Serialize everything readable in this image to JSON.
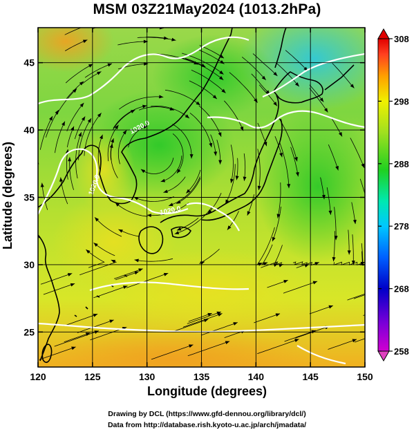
{
  "title": "MSM 03Z21May2024 (1013.2hPa)",
  "xlabel": "Longitude (degrees)",
  "ylabel": "Latitude  (degrees)",
  "credits": [
    "Drawing by DCL (https://www.gfd-dennou.org/library/dcl/)",
    "Data from http://database.rish.kyoto-u.ac.jp/arch/jmadata/"
  ],
  "chart_data": {
    "type": "heatmap",
    "title": "MSM 03Z21May2024 (1013.2hPa)",
    "xlabel": "Longitude (degrees)",
    "ylabel": "Latitude  (degrees)",
    "xlim": [
      120,
      150
    ],
    "ylim": [
      22.4,
      47.6
    ],
    "xticks": [
      120,
      125,
      130,
      135,
      140,
      145,
      150
    ],
    "yticks": [
      25,
      30,
      35,
      40,
      45
    ],
    "xtick_labels": [
      "120",
      "125",
      "130",
      "135",
      "140",
      "145",
      "150"
    ],
    "ytick_labels": [
      "25",
      "30",
      "35",
      "40",
      "45"
    ],
    "colorbar": {
      "min": 258,
      "max": 308,
      "ticks": [
        258,
        268,
        278,
        288,
        298,
        308
      ],
      "tick_labels": [
        "258",
        "268",
        "278",
        "288",
        "298",
        "308"
      ],
      "colormap": [
        "#d000d0",
        "#7a00d8",
        "#0000c8",
        "#0060ff",
        "#00c8ff",
        "#00e8b0",
        "#20d020",
        "#a0e020",
        "#f0f000",
        "#ffa000",
        "#ff4020",
        "#e00000"
      ]
    },
    "contour_labels": [
      "1020.0",
      "1020.0",
      "1020.0"
    ],
    "grid": true,
    "field": "temperature (K) with streamlines and pressure contours"
  }
}
